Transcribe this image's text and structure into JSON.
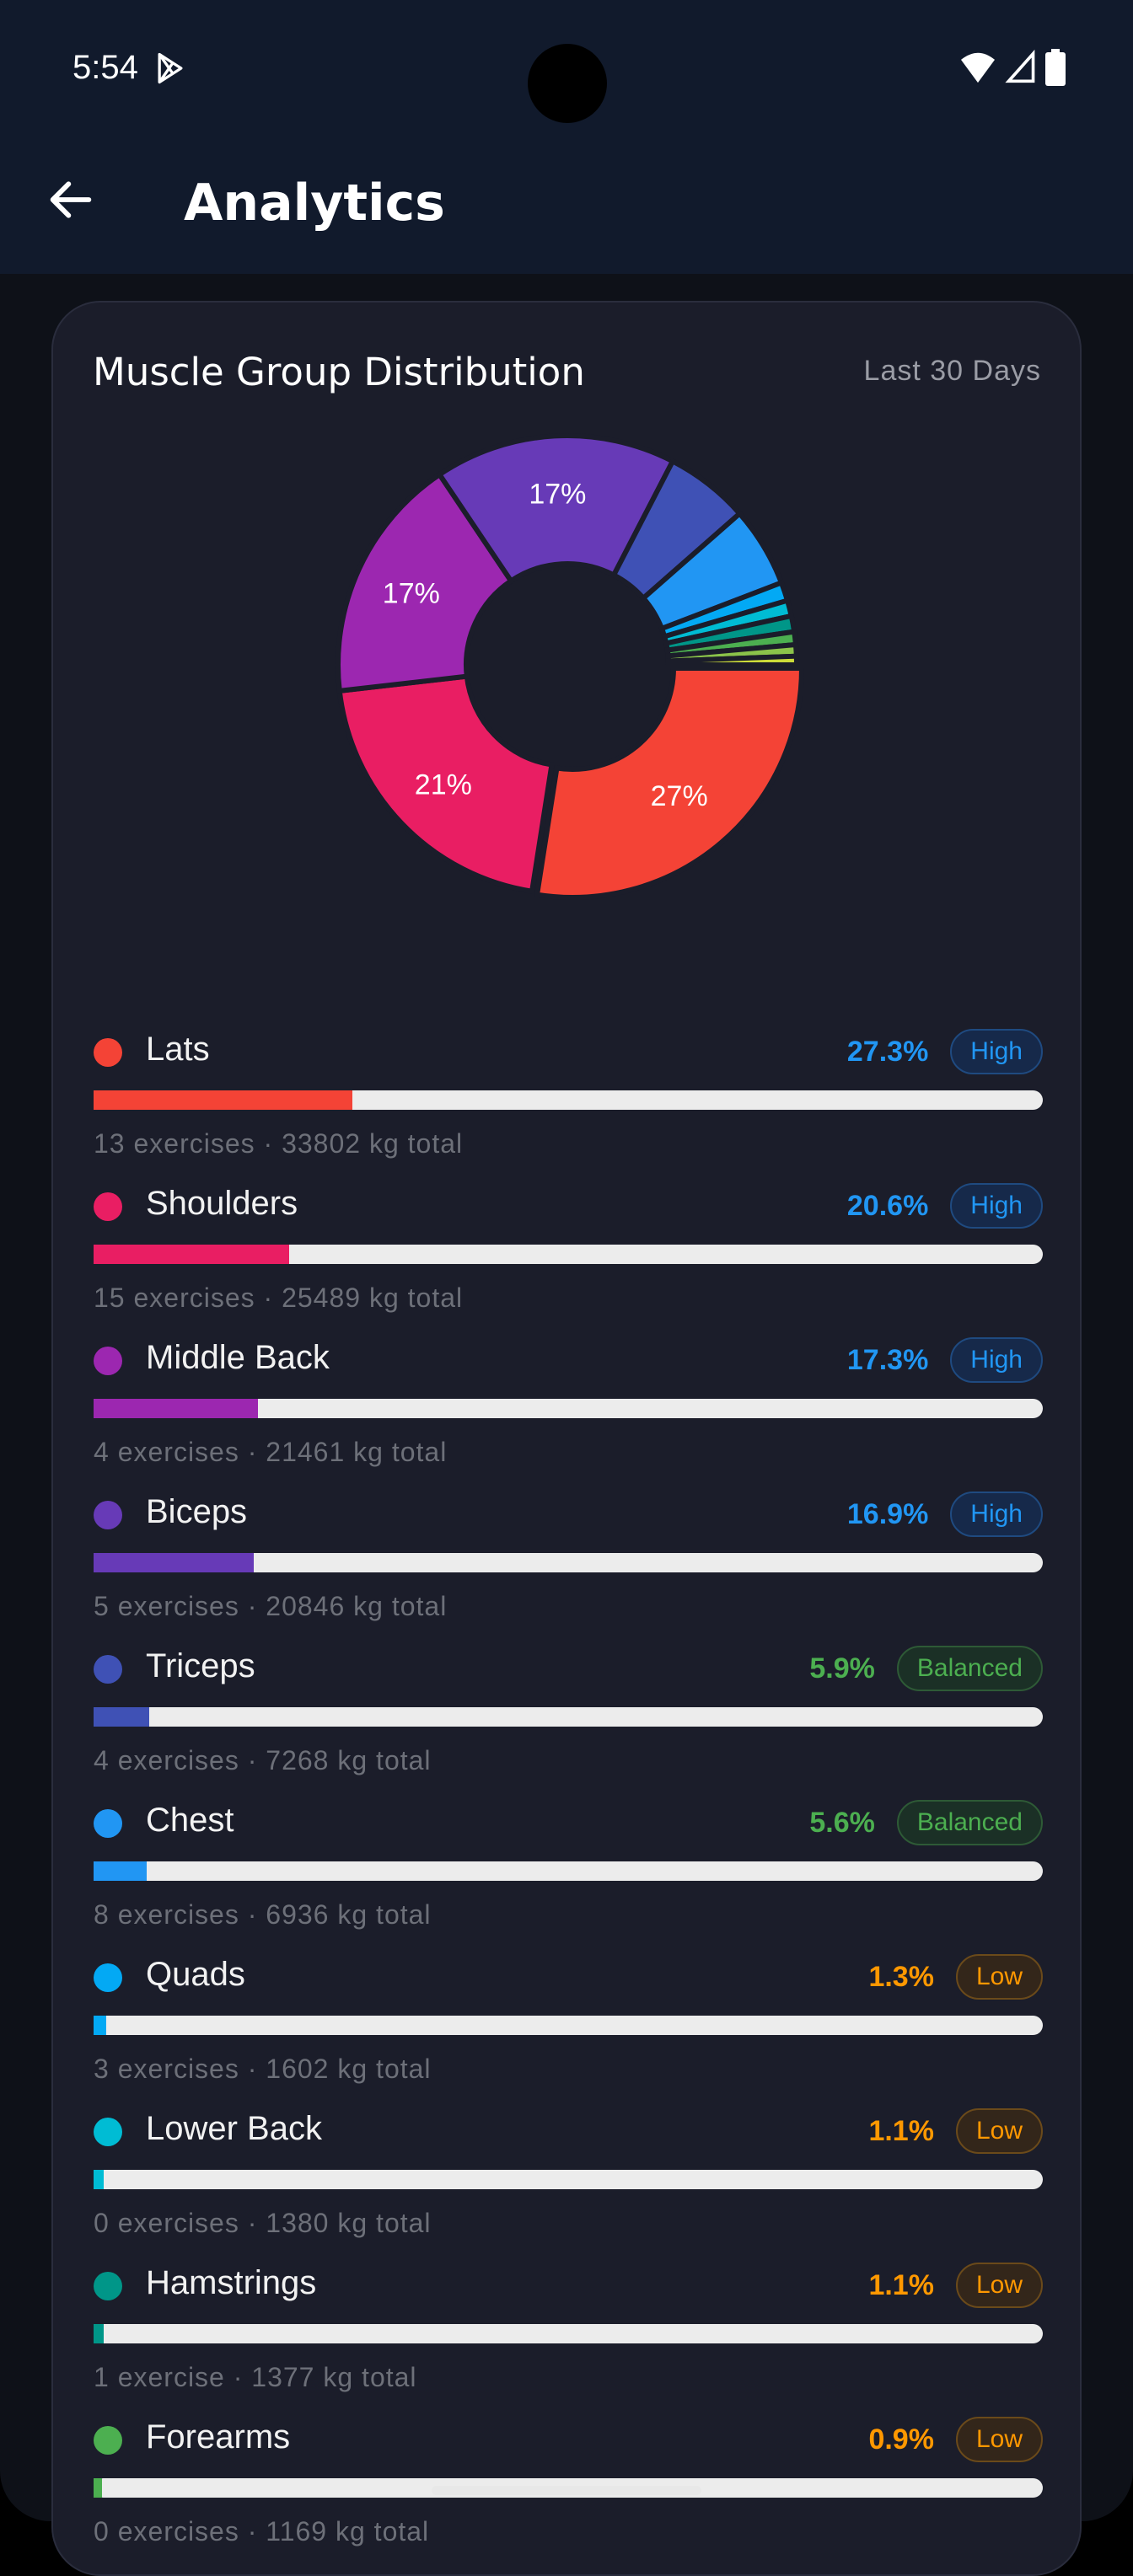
{
  "status_bar": {
    "time": "5:54",
    "icons": [
      "play-store-icon",
      "wifi-icon",
      "signal-icon",
      "battery-icon"
    ]
  },
  "header": {
    "title": "Analytics",
    "back_icon": "arrow-left-icon"
  },
  "card": {
    "title": "Muscle Group Distribution",
    "range": "Last 30 Days"
  },
  "colors": {
    "high": "#2196f3",
    "balanced": "#4caf50",
    "low": "#ff9800"
  },
  "chart_data": {
    "type": "pie",
    "donut": true,
    "start": "3 o'clock, clockwise",
    "slices": [
      {
        "name": "Lats",
        "value": 27.3,
        "label": "27%",
        "color": "#f44336"
      },
      {
        "name": "Shoulders",
        "value": 20.6,
        "label": "21%",
        "color": "#e91e63"
      },
      {
        "name": "Middle Back",
        "value": 17.3,
        "label": "17%",
        "color": "#9c27b0"
      },
      {
        "name": "Biceps",
        "value": 16.9,
        "label": "17%",
        "color": "#673ab7"
      },
      {
        "name": "Triceps",
        "value": 5.9,
        "label": "",
        "color": "#3f51b5"
      },
      {
        "name": "Chest",
        "value": 5.6,
        "label": "",
        "color": "#2196f3"
      },
      {
        "name": "Quads",
        "value": 1.3,
        "label": "",
        "color": "#03a9f4"
      },
      {
        "name": "Lower Back",
        "value": 1.1,
        "label": "",
        "color": "#00bcd4"
      },
      {
        "name": "Hamstrings",
        "value": 1.1,
        "label": "",
        "color": "#009688"
      },
      {
        "name": "Forearms",
        "value": 0.9,
        "label": "",
        "color": "#4caf50"
      },
      {
        "value": 0.8,
        "label": "",
        "color": "#8bc34a"
      },
      {
        "value": 0.6,
        "label": "",
        "color": "#cddc39"
      }
    ]
  },
  "groups": [
    {
      "name": "Lats",
      "color": "#f44336",
      "percent": "27.3%",
      "value": 27.3,
      "status": "High",
      "level": "high",
      "detail": "13 exercises · 33802 kg total"
    },
    {
      "name": "Shoulders",
      "color": "#e91e63",
      "percent": "20.6%",
      "value": 20.6,
      "status": "High",
      "level": "high",
      "detail": "15 exercises · 25489 kg total"
    },
    {
      "name": "Middle Back",
      "color": "#9c27b0",
      "percent": "17.3%",
      "value": 17.3,
      "status": "High",
      "level": "high",
      "detail": "4 exercises · 21461 kg total"
    },
    {
      "name": "Biceps",
      "color": "#673ab7",
      "percent": "16.9%",
      "value": 16.9,
      "status": "High",
      "level": "high",
      "detail": "5 exercises · 20846 kg total"
    },
    {
      "name": "Triceps",
      "color": "#3f51b5",
      "percent": "5.9%",
      "value": 5.9,
      "status": "Balanced",
      "level": "balanced",
      "detail": "4 exercises · 7268 kg total"
    },
    {
      "name": "Chest",
      "color": "#2196f3",
      "percent": "5.6%",
      "value": 5.6,
      "status": "Balanced",
      "level": "balanced",
      "detail": "8 exercises · 6936 kg total"
    },
    {
      "name": "Quads",
      "color": "#03a9f4",
      "percent": "1.3%",
      "value": 1.3,
      "status": "Low",
      "level": "low",
      "detail": "3 exercises · 1602 kg total"
    },
    {
      "name": "Lower Back",
      "color": "#00bcd4",
      "percent": "1.1%",
      "value": 1.1,
      "status": "Low",
      "level": "low",
      "detail": "0 exercises · 1380 kg total"
    },
    {
      "name": "Hamstrings",
      "color": "#009688",
      "percent": "1.1%",
      "value": 1.1,
      "status": "Low",
      "level": "low",
      "detail": "1 exercise · 1377 kg total"
    },
    {
      "name": "Forearms",
      "color": "#4caf50",
      "percent": "0.9%",
      "value": 0.9,
      "status": "Low",
      "level": "low",
      "detail": "0 exercises · 1169 kg total"
    }
  ]
}
